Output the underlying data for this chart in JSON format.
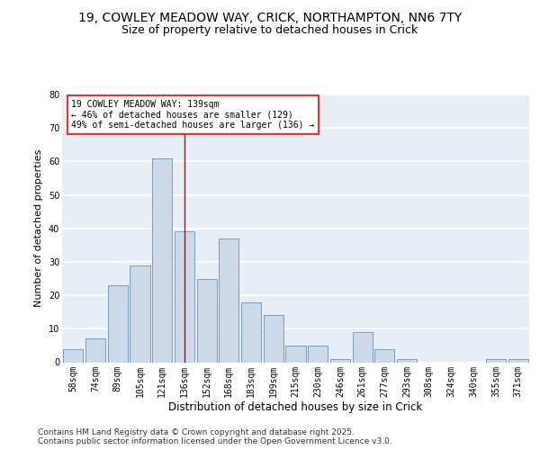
{
  "title_line1": "19, COWLEY MEADOW WAY, CRICK, NORTHAMPTON, NN6 7TY",
  "title_line2": "Size of property relative to detached houses in Crick",
  "xlabel": "Distribution of detached houses by size in Crick",
  "ylabel": "Number of detached properties",
  "categories": [
    "58sqm",
    "74sqm",
    "89sqm",
    "105sqm",
    "121sqm",
    "136sqm",
    "152sqm",
    "168sqm",
    "183sqm",
    "199sqm",
    "215sqm",
    "230sqm",
    "246sqm",
    "261sqm",
    "277sqm",
    "293sqm",
    "308sqm",
    "324sqm",
    "340sqm",
    "355sqm",
    "371sqm"
  ],
  "values": [
    4,
    7,
    23,
    29,
    61,
    39,
    25,
    37,
    18,
    14,
    5,
    5,
    1,
    9,
    4,
    1,
    0,
    0,
    0,
    1,
    1
  ],
  "bar_color": "#ccd9e8",
  "bar_edge_color": "#7a9cbf",
  "annotation_text": "19 COWLEY MEADOW WAY: 139sqm\n← 46% of detached houses are smaller (129)\n49% of semi-detached houses are larger (136) →",
  "annotation_box_color": "white",
  "annotation_box_edge": "red",
  "ylim": [
    0,
    80
  ],
  "yticks": [
    0,
    10,
    20,
    30,
    40,
    50,
    60,
    70,
    80
  ],
  "background_color": "#e8eef5",
  "grid_color": "white",
  "footer_text": "Contains HM Land Registry data © Crown copyright and database right 2025.\nContains public sector information licensed under the Open Government Licence v3.0.",
  "title_fontsize": 10,
  "subtitle_fontsize": 9,
  "xlabel_fontsize": 8.5,
  "ylabel_fontsize": 8,
  "tick_fontsize": 7,
  "annotation_fontsize": 7,
  "footer_fontsize": 6.5
}
